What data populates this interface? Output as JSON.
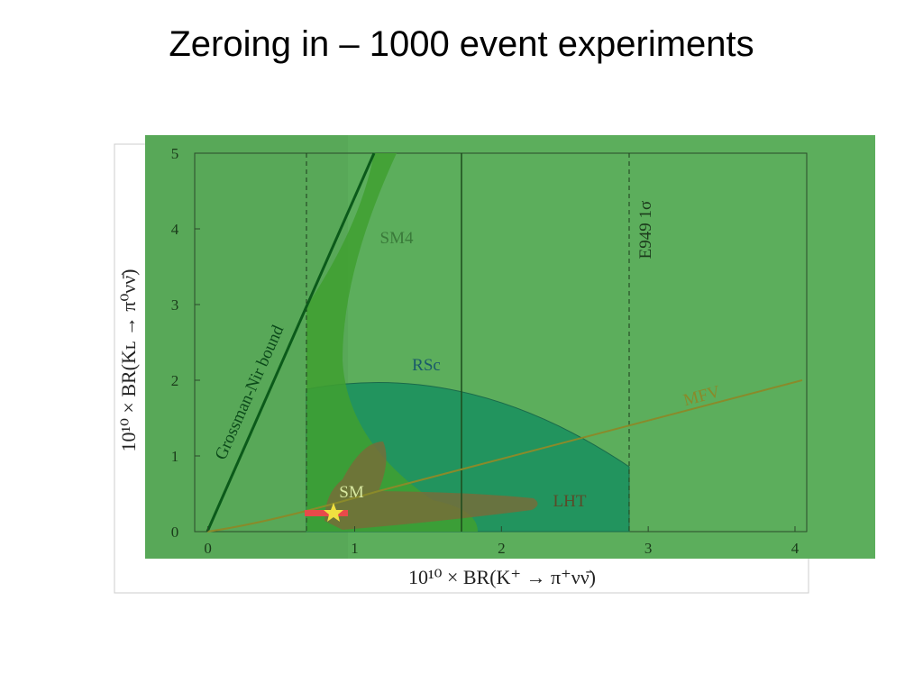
{
  "title": "Zeroing in – 1000 event experiments",
  "chart_data": {
    "type": "region",
    "xlabel": "10¹⁰ × BR(K⁺ → π⁺νν̄)",
    "ylabel": "10¹⁰ × BR(Kʟ → π⁰νν̄)",
    "xlim": [
      -0.09,
      4.08
    ],
    "ylim": [
      0,
      5
    ],
    "xticks": [
      0,
      1,
      2,
      3,
      4
    ],
    "yticks": [
      0,
      1,
      2,
      3,
      4,
      5
    ],
    "annotations": [
      "SM4",
      "RSc",
      "MFV",
      "LHT",
      "SM",
      "E949 1σ",
      "Grossman-Nir bound"
    ]
  }
}
